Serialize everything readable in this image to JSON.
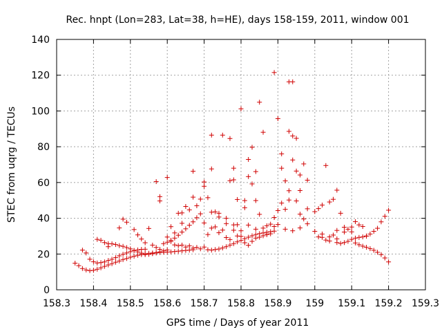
{
  "chart_data": {
    "type": "scatter",
    "title": "Rec. hnpt (Lon=283, Lat=38, h=HE), days 158-159, 2011, window 001",
    "xlabel": "GPS time / Days of year 2011",
    "ylabel": "STEC from uqrg / TECUs",
    "xlim": [
      158.3,
      159.3
    ],
    "ylim": [
      0,
      140
    ],
    "xticks": [
      "158.3",
      "158.4",
      "158.5",
      "158.6",
      "158.7",
      "158.8",
      "158.9",
      "159",
      "159.1",
      "159.2",
      "159.3"
    ],
    "yticks": [
      "0",
      "20",
      "40",
      "60",
      "80",
      "100",
      "120",
      "140"
    ],
    "grid": true,
    "marker": "plus",
    "color": "#d00000",
    "points": [
      [
        158.35,
        14.9
      ],
      [
        158.36,
        13.5
      ],
      [
        158.37,
        11.9
      ],
      [
        158.38,
        11.1
      ],
      [
        158.39,
        10.7
      ],
      [
        158.4,
        10.9
      ],
      [
        158.41,
        11.5
      ],
      [
        158.42,
        12.3
      ],
      [
        158.43,
        13.1
      ],
      [
        158.44,
        13.9
      ],
      [
        158.45,
        14.6
      ],
      [
        158.46,
        15.4
      ],
      [
        158.47,
        16.1
      ],
      [
        158.48,
        16.9
      ],
      [
        158.49,
        17.5
      ],
      [
        158.5,
        18.2
      ],
      [
        158.51,
        18.8
      ],
      [
        158.52,
        19.3
      ],
      [
        158.53,
        19.7
      ],
      [
        158.54,
        20.1
      ],
      [
        158.55,
        20.4
      ],
      [
        158.56,
        20.6
      ],
      [
        158.57,
        20.8
      ],
      [
        158.58,
        20.9
      ],
      [
        158.59,
        21.0
      ],
      [
        158.6,
        21.1
      ],
      [
        158.61,
        21.2
      ],
      [
        158.62,
        21.4
      ],
      [
        158.63,
        21.6
      ],
      [
        158.64,
        21.8
      ],
      [
        158.65,
        22.0
      ],
      [
        158.66,
        22.2
      ],
      [
        158.67,
        22.4
      ],
      [
        158.37,
        22.2
      ],
      [
        158.38,
        20.6
      ],
      [
        158.39,
        17.1
      ],
      [
        158.4,
        15.7
      ],
      [
        158.41,
        15.0
      ],
      [
        158.42,
        15.2
      ],
      [
        158.43,
        15.6
      ],
      [
        158.44,
        16.4
      ],
      [
        158.45,
        17.1
      ],
      [
        158.46,
        18.0
      ],
      [
        158.47,
        19.0
      ],
      [
        158.48,
        19.9
      ],
      [
        158.49,
        20.6
      ],
      [
        158.5,
        21.3
      ],
      [
        158.51,
        21.9
      ],
      [
        158.52,
        22.3
      ],
      [
        158.53,
        22.6
      ],
      [
        158.54,
        22.7
      ],
      [
        158.41,
        28.2
      ],
      [
        158.42,
        27.7
      ],
      [
        158.43,
        26.4
      ],
      [
        158.44,
        25.8
      ],
      [
        158.45,
        25.7
      ],
      [
        158.46,
        25.3
      ],
      [
        158.47,
        24.7
      ],
      [
        158.48,
        24.3
      ],
      [
        158.49,
        23.6
      ],
      [
        158.5,
        22.9
      ],
      [
        158.51,
        22.0
      ],
      [
        158.52,
        21.2
      ],
      [
        158.53,
        20.5
      ],
      [
        158.54,
        19.7
      ],
      [
        158.55,
        19.8
      ],
      [
        158.56,
        20.2
      ],
      [
        158.57,
        20.6
      ],
      [
        158.58,
        21.2
      ],
      [
        158.59,
        21.8
      ],
      [
        158.6,
        22.3
      ],
      [
        158.44,
        24.1
      ],
      [
        158.47,
        34.6
      ],
      [
        158.48,
        39.5
      ],
      [
        158.49,
        37.8
      ],
      [
        158.51,
        33.7
      ],
      [
        158.52,
        30.7
      ],
      [
        158.53,
        28.4
      ],
      [
        158.54,
        26.3
      ],
      [
        158.55,
        34.3
      ],
      [
        158.56,
        25.0
      ],
      [
        158.57,
        23.7
      ],
      [
        158.58,
        22.6
      ],
      [
        158.59,
        25.8
      ],
      [
        158.6,
        26.6
      ],
      [
        158.61,
        27.7
      ],
      [
        158.62,
        28.9
      ],
      [
        158.63,
        30.5
      ],
      [
        158.64,
        32.3
      ],
      [
        158.65,
        34.1
      ],
      [
        158.66,
        36.1
      ],
      [
        158.67,
        38.0
      ],
      [
        158.68,
        40.3
      ],
      [
        158.69,
        42.5
      ],
      [
        158.57,
        60.5
      ],
      [
        158.58,
        52.1
      ],
      [
        158.58,
        49.7
      ],
      [
        158.6,
        62.8
      ],
      [
        158.61,
        35.3
      ],
      [
        158.62,
        31.8
      ],
      [
        158.63,
        42.8
      ],
      [
        158.64,
        37.2
      ],
      [
        158.64,
        43.0
      ],
      [
        158.65,
        46.6
      ],
      [
        158.66,
        44.7
      ],
      [
        158.67,
        66.3
      ],
      [
        158.67,
        51.8
      ],
      [
        158.68,
        47.0
      ],
      [
        158.69,
        50.7
      ],
      [
        158.6,
        29.5
      ],
      [
        158.61,
        27.0
      ],
      [
        158.62,
        25.1
      ],
      [
        158.63,
        24.7
      ],
      [
        158.64,
        25.0
      ],
      [
        158.65,
        23.9
      ],
      [
        158.66,
        24.6
      ],
      [
        158.67,
        23.3
      ],
      [
        158.68,
        23.7
      ],
      [
        158.69,
        22.9
      ],
      [
        158.7,
        23.9
      ],
      [
        158.71,
        22.4
      ],
      [
        158.72,
        22.2
      ],
      [
        158.73,
        22.5
      ],
      [
        158.74,
        22.8
      ],
      [
        158.75,
        23.4
      ],
      [
        158.76,
        24.1
      ],
      [
        158.77,
        25.0
      ],
      [
        158.78,
        25.8
      ],
      [
        158.79,
        26.8
      ],
      [
        158.8,
        27.6
      ],
      [
        158.81,
        28.6
      ],
      [
        158.82,
        29.4
      ],
      [
        158.83,
        30.2
      ],
      [
        158.84,
        30.9
      ],
      [
        158.85,
        31.4
      ],
      [
        158.86,
        31.8
      ],
      [
        158.87,
        32.2
      ],
      [
        158.88,
        32.5
      ],
      [
        158.89,
        32.8
      ],
      [
        158.7,
        60.3
      ],
      [
        158.7,
        57.9
      ],
      [
        158.71,
        51.5
      ],
      [
        158.72,
        67.6
      ],
      [
        158.72,
        86.5
      ],
      [
        158.73,
        43.6
      ],
      [
        158.74,
        40.7
      ],
      [
        158.75,
        86.5
      ],
      [
        158.76,
        37.0
      ],
      [
        158.77,
        84.6
      ],
      [
        158.77,
        61.0
      ],
      [
        158.78,
        61.5
      ],
      [
        158.78,
        68.0
      ],
      [
        158.79,
        50.5
      ],
      [
        158.79,
        36.4
      ],
      [
        158.8,
        101.2
      ],
      [
        158.81,
        45.9
      ],
      [
        158.81,
        49.9
      ],
      [
        158.82,
        72.9
      ],
      [
        158.82,
        63.3
      ],
      [
        158.83,
        79.7
      ],
      [
        158.83,
        59.2
      ],
      [
        158.84,
        49.9
      ],
      [
        158.84,
        66.1
      ],
      [
        158.85,
        104.9
      ],
      [
        158.85,
        42.2
      ],
      [
        158.86,
        88.1
      ],
      [
        158.87,
        31.0
      ],
      [
        158.87,
        35.8
      ],
      [
        158.7,
        37.4
      ],
      [
        158.71,
        30.9
      ],
      [
        158.72,
        34.5
      ],
      [
        158.73,
        35.2
      ],
      [
        158.74,
        31.9
      ],
      [
        158.75,
        33.4
      ],
      [
        158.76,
        29.2
      ],
      [
        158.77,
        28.1
      ],
      [
        158.78,
        33.3
      ],
      [
        158.79,
        30.1
      ],
      [
        158.8,
        29.9
      ],
      [
        158.81,
        26.3
      ],
      [
        158.82,
        24.9
      ],
      [
        158.83,
        27.1
      ],
      [
        158.84,
        28.9
      ],
      [
        158.85,
        29.4
      ],
      [
        158.86,
        30.2
      ],
      [
        158.87,
        30.9
      ],
      [
        158.88,
        31.3
      ],
      [
        158.89,
        35.4
      ],
      [
        158.72,
        43.4
      ],
      [
        158.74,
        42.8
      ],
      [
        158.76,
        40.0
      ],
      [
        158.78,
        36.3
      ],
      [
        158.8,
        33.0
      ],
      [
        158.82,
        36.2
      ],
      [
        158.84,
        33.9
      ],
      [
        158.86,
        34.5
      ],
      [
        158.88,
        36.7
      ],
      [
        158.89,
        121.5
      ],
      [
        158.89,
        40.4
      ],
      [
        158.9,
        95.7
      ],
      [
        158.9,
        44.3
      ],
      [
        158.91,
        76.0
      ],
      [
        158.91,
        68.0
      ],
      [
        158.92,
        60.9
      ],
      [
        158.93,
        116.3
      ],
      [
        158.93,
        88.6
      ],
      [
        158.93,
        55.4
      ],
      [
        158.94,
        116.3
      ],
      [
        158.94,
        86.0
      ],
      [
        158.94,
        72.6
      ],
      [
        158.95,
        84.7
      ],
      [
        158.95,
        66.4
      ],
      [
        158.96,
        64.2
      ],
      [
        158.97,
        70.4
      ],
      [
        158.98,
        61.3
      ],
      [
        158.98,
        45.3
      ],
      [
        158.96,
        55.5
      ],
      [
        158.92,
        45.0
      ],
      [
        158.91,
        48.5
      ],
      [
        158.93,
        50.2
      ],
      [
        158.95,
        49.7
      ],
      [
        158.96,
        42.3
      ],
      [
        158.97,
        39.6
      ],
      [
        158.98,
        36.9
      ],
      [
        158.9,
        36.5
      ],
      [
        158.92,
        33.9
      ],
      [
        158.94,
        33.0
      ],
      [
        158.96,
        34.6
      ],
      [
        159.0,
        43.7
      ],
      [
        159.01,
        45.4
      ],
      [
        159.02,
        47.4
      ],
      [
        159.03,
        69.5
      ],
      [
        159.04,
        49.1
      ],
      [
        159.05,
        50.6
      ],
      [
        159.06,
        55.7
      ],
      [
        159.07,
        42.8
      ],
      [
        159.0,
        32.7
      ],
      [
        159.01,
        29.6
      ],
      [
        159.02,
        29.3
      ],
      [
        159.03,
        27.8
      ],
      [
        159.04,
        27.3
      ],
      [
        159.05,
        30.6
      ],
      [
        159.06,
        26.4
      ],
      [
        159.07,
        25.9
      ],
      [
        159.08,
        26.4
      ],
      [
        159.09,
        27.1
      ],
      [
        159.1,
        28.2
      ],
      [
        159.11,
        28.9
      ],
      [
        159.12,
        29.3
      ],
      [
        159.13,
        29.6
      ],
      [
        159.14,
        30.0
      ],
      [
        159.02,
        31.2
      ],
      [
        159.04,
        29.6
      ],
      [
        159.06,
        28.5
      ],
      [
        159.08,
        32.3
      ],
      [
        159.09,
        33.9
      ],
      [
        159.1,
        35.1
      ],
      [
        159.11,
        38.1
      ],
      [
        159.12,
        36.3
      ],
      [
        159.13,
        35.4
      ],
      [
        159.14,
        30.1
      ],
      [
        159.15,
        31.2
      ],
      [
        159.16,
        32.7
      ],
      [
        159.17,
        34.4
      ],
      [
        159.18,
        38.0
      ],
      [
        159.19,
        41.1
      ],
      [
        159.2,
        44.5
      ],
      [
        159.06,
        33.2
      ],
      [
        159.08,
        35.0
      ],
      [
        159.1,
        32.4
      ],
      [
        159.11,
        26.2
      ],
      [
        159.12,
        25.2
      ],
      [
        159.13,
        24.4
      ],
      [
        159.14,
        23.8
      ],
      [
        159.15,
        23.0
      ],
      [
        159.16,
        22.1
      ],
      [
        159.17,
        21.0
      ],
      [
        159.18,
        19.7
      ],
      [
        159.19,
        17.8
      ],
      [
        159.2,
        15.6
      ]
    ]
  }
}
